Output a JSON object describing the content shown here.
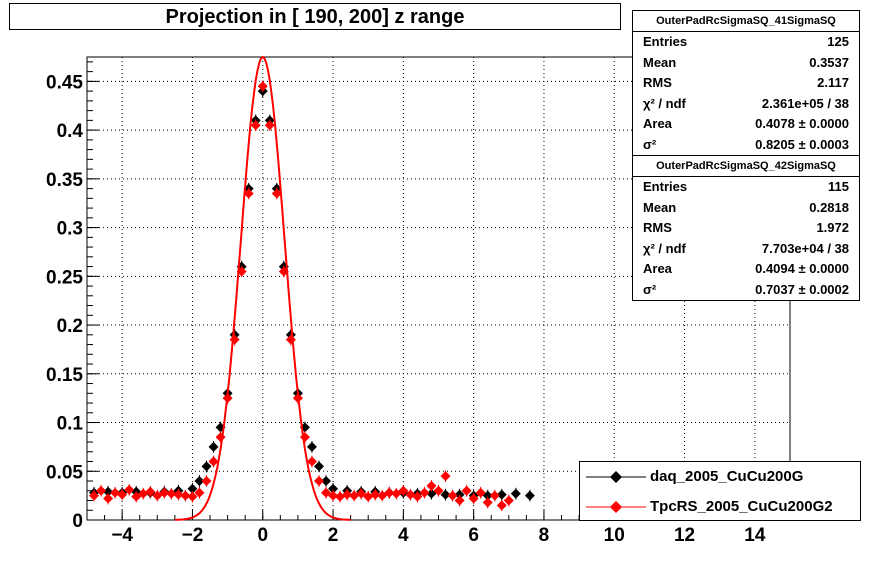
{
  "title": "Projection in [ 190, 200] z range",
  "colors": {
    "series_a": "#000000",
    "series_b": "#ff0000",
    "grid": "#000000"
  },
  "stats_boxes": [
    {
      "name": "OuterPadRcSigmaSQ_41SigmaSQ",
      "rows": [
        {
          "k": "Entries",
          "v": "125"
        },
        {
          "k": "Mean",
          "v": "0.3537"
        },
        {
          "k": "RMS",
          "v": "2.117"
        },
        {
          "k": "χ² / ndf",
          "v": "2.361e+05 / 38"
        },
        {
          "k": "Area",
          "v": "0.4078 ± 0.0000"
        },
        {
          "k": "σ²",
          "v": "0.8205 ± 0.0003"
        }
      ]
    },
    {
      "name": "OuterPadRcSigmaSQ_42SigmaSQ",
      "rows": [
        {
          "k": "Entries",
          "v": "115"
        },
        {
          "k": "Mean",
          "v": "0.2818"
        },
        {
          "k": "RMS",
          "v": "1.972"
        },
        {
          "k": "χ² / ndf",
          "v": "7.703e+04 / 38"
        },
        {
          "k": "Area",
          "v": "0.4094 ± 0.0000"
        },
        {
          "k": "σ²",
          "v": "0.7037 ± 0.0002"
        }
      ]
    }
  ],
  "legend": [
    {
      "label": "daq_2005_CuCu200G",
      "color": "#000000"
    },
    {
      "label": "TpcRS_2005_CuCu200G2",
      "color": "#ff0000"
    }
  ],
  "chart_data": {
    "type": "scatter",
    "title": "Projection in [ 190, 200] z range",
    "xlim": [
      -5,
      15
    ],
    "ylim": [
      0,
      0.475
    ],
    "x_ticks": [
      -4,
      -2,
      0,
      2,
      4,
      6,
      8,
      10,
      12,
      14
    ],
    "y_ticks": [
      0,
      0.05,
      0.1,
      0.15,
      0.2,
      0.25,
      0.3,
      0.35,
      0.4,
      0.45
    ],
    "y_tick_labels": [
      "0",
      "0.05",
      "0.1",
      "0.15",
      "0.2",
      "0.25",
      "0.3",
      "0.35",
      "0.4",
      "0.45"
    ],
    "grid": true,
    "legend_position": "bottom-right",
    "series": [
      {
        "name": "daq_2005_CuCu200G",
        "color": "#000000",
        "points": [
          [
            -4.8,
            0.028
          ],
          [
            -4.4,
            0.029
          ],
          [
            -4.0,
            0.028
          ],
          [
            -3.6,
            0.029
          ],
          [
            -3.2,
            0.028
          ],
          [
            -2.8,
            0.029
          ],
          [
            -2.4,
            0.03
          ],
          [
            -2.0,
            0.032
          ],
          [
            -1.8,
            0.04
          ],
          [
            -1.6,
            0.055
          ],
          [
            -1.4,
            0.075
          ],
          [
            -1.2,
            0.095
          ],
          [
            -1.0,
            0.13
          ],
          [
            -0.8,
            0.19
          ],
          [
            -0.6,
            0.26
          ],
          [
            -0.4,
            0.34
          ],
          [
            -0.2,
            0.41
          ],
          [
            0.0,
            0.44
          ],
          [
            0.2,
            0.41
          ],
          [
            0.4,
            0.34
          ],
          [
            0.6,
            0.26
          ],
          [
            0.8,
            0.19
          ],
          [
            1.0,
            0.13
          ],
          [
            1.2,
            0.095
          ],
          [
            1.4,
            0.075
          ],
          [
            1.6,
            0.055
          ],
          [
            1.8,
            0.04
          ],
          [
            2.0,
            0.032
          ],
          [
            2.4,
            0.03
          ],
          [
            2.8,
            0.029
          ],
          [
            3.2,
            0.029
          ],
          [
            3.6,
            0.028
          ],
          [
            4.0,
            0.028
          ],
          [
            4.4,
            0.027
          ],
          [
            4.8,
            0.027
          ],
          [
            5.2,
            0.026
          ],
          [
            5.6,
            0.026
          ],
          [
            6.0,
            0.025
          ],
          [
            6.4,
            0.025
          ],
          [
            6.8,
            0.026
          ],
          [
            7.2,
            0.027
          ],
          [
            7.6,
            0.025
          ]
        ]
      },
      {
        "name": "TpcRS_2005_CuCu200G2",
        "color": "#ff0000",
        "points": [
          [
            -4.8,
            0.025
          ],
          [
            -4.6,
            0.03
          ],
          [
            -4.4,
            0.022
          ],
          [
            -4.2,
            0.028
          ],
          [
            -4.0,
            0.026
          ],
          [
            -3.8,
            0.031
          ],
          [
            -3.6,
            0.024
          ],
          [
            -3.4,
            0.027
          ],
          [
            -3.2,
            0.029
          ],
          [
            -3.0,
            0.025
          ],
          [
            -2.8,
            0.028
          ],
          [
            -2.6,
            0.027
          ],
          [
            -2.4,
            0.026
          ],
          [
            -2.2,
            0.025
          ],
          [
            -2.0,
            0.024
          ],
          [
            -1.8,
            0.028
          ],
          [
            -1.6,
            0.04
          ],
          [
            -1.4,
            0.06
          ],
          [
            -1.2,
            0.085
          ],
          [
            -1.0,
            0.125
          ],
          [
            -0.8,
            0.185
          ],
          [
            -0.6,
            0.255
          ],
          [
            -0.4,
            0.335
          ],
          [
            -0.2,
            0.405
          ],
          [
            0.0,
            0.445
          ],
          [
            0.2,
            0.405
          ],
          [
            0.4,
            0.335
          ],
          [
            0.6,
            0.255
          ],
          [
            0.8,
            0.185
          ],
          [
            1.0,
            0.125
          ],
          [
            1.2,
            0.085
          ],
          [
            1.4,
            0.06
          ],
          [
            1.6,
            0.04
          ],
          [
            1.8,
            0.028
          ],
          [
            2.0,
            0.025
          ],
          [
            2.2,
            0.024
          ],
          [
            2.4,
            0.026
          ],
          [
            2.6,
            0.025
          ],
          [
            2.8,
            0.027
          ],
          [
            3.0,
            0.024
          ],
          [
            3.2,
            0.026
          ],
          [
            3.4,
            0.025
          ],
          [
            3.6,
            0.028
          ],
          [
            3.8,
            0.027
          ],
          [
            4.0,
            0.03
          ],
          [
            4.2,
            0.026
          ],
          [
            4.4,
            0.024
          ],
          [
            4.6,
            0.028
          ],
          [
            4.8,
            0.035
          ],
          [
            5.0,
            0.03
          ],
          [
            5.2,
            0.045
          ],
          [
            5.4,
            0.025
          ],
          [
            5.6,
            0.02
          ],
          [
            5.8,
            0.03
          ],
          [
            6.0,
            0.022
          ],
          [
            6.2,
            0.028
          ],
          [
            6.4,
            0.018
          ],
          [
            6.6,
            0.025
          ],
          [
            6.8,
            0.015
          ],
          [
            7.0,
            0.02
          ]
        ]
      }
    ]
  }
}
